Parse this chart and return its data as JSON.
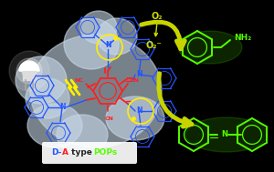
{
  "background_color": "#000000",
  "blob_color": "#c8d8e8",
  "blob_alpha": 0.6,
  "arrow_color": "#c8d400",
  "acceptor_core_color": "#ff2020",
  "donor_color": "#2255ff",
  "cn_color": "#ff2020",
  "molecule_green": "#55ff00",
  "lightning_color": "#ffee00",
  "o2_color": "#ccdd00",
  "label_a_color": "#ff2020",
  "label_d_color": "#2255ff",
  "label_pops_color": "#55ff00",
  "label_type_color": "#ffffff",
  "o2_text": "O₂",
  "o2_minus_text": "O₂⁻",
  "nh2_text": "NH₂"
}
